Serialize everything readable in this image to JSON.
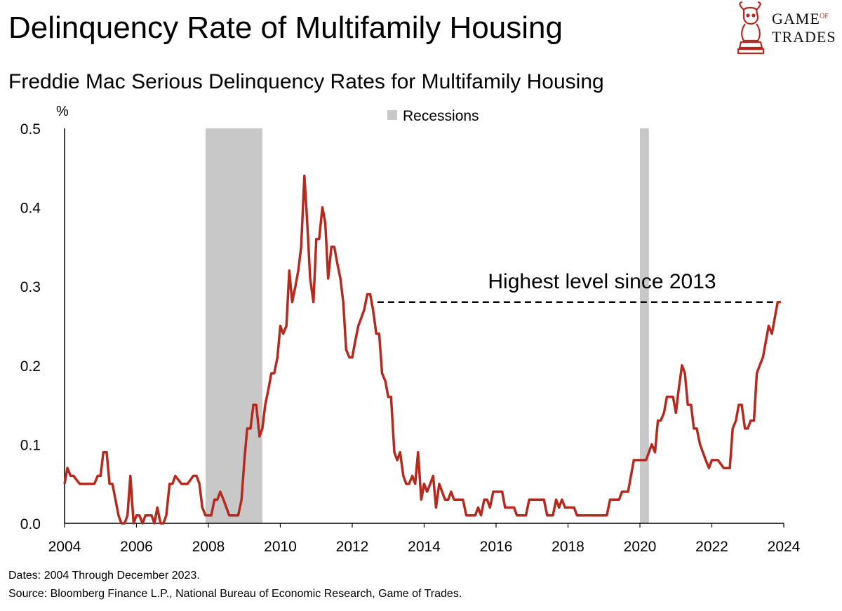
{
  "header": {
    "title": "Delinquency Rate of Multifamily Housing",
    "subtitle": "Freddie Mac Serious Delinquency Rates for Multifamily Housing",
    "logo_line1": "GAME",
    "logo_of": "OF",
    "logo_line2": "TRADES"
  },
  "footer": {
    "dates_note": "Dates: 2004 Through December 2023.",
    "source_note": "Source: Bloomberg Finance L.P., National Bureau of Economic Research, Game of Trades."
  },
  "colors": {
    "line": "#b5291f",
    "recession": "#c8c8c8",
    "axis": "#000000"
  },
  "chart_data": {
    "type": "line",
    "ylabel": "%",
    "xlim": [
      2004,
      2024
    ],
    "ylim": [
      0,
      0.5
    ],
    "x_ticks": [
      2004,
      2006,
      2008,
      2010,
      2012,
      2014,
      2016,
      2018,
      2020,
      2022,
      2024
    ],
    "y_ticks": [
      "0.0",
      "0.1",
      "0.2",
      "0.3",
      "0.4",
      "0.5"
    ],
    "legend": {
      "label": "Recessions",
      "placement": "top-center"
    },
    "recessions": [
      {
        "start": 2007.92,
        "end": 2009.5
      },
      {
        "start": 2020.0,
        "end": 2020.25
      }
    ],
    "annotation": {
      "text": "Highest level since 2013",
      "y": 0.28,
      "x_start": 2012.7,
      "x_end": 2023.9
    },
    "series": [
      {
        "x": [
          2004.0,
          2004.08,
          2004.17,
          2004.25,
          2004.42,
          2004.5,
          2004.83,
          2004.92,
          2005.0,
          2005.08,
          2005.17,
          2005.25,
          2005.33,
          2005.5,
          2005.58,
          2005.67,
          2005.75,
          2005.83,
          2005.92,
          2006.0,
          2006.08,
          2006.17,
          2006.25,
          2006.33,
          2006.42,
          2006.5,
          2006.58,
          2006.67,
          2006.75,
          2006.83,
          2006.92,
          2007.0,
          2007.08,
          2007.25,
          2007.33,
          2007.42,
          2007.58,
          2007.67,
          2007.75,
          2007.83,
          2007.92,
          2008.0,
          2008.08,
          2008.17,
          2008.25,
          2008.33,
          2008.42,
          2008.5,
          2008.58,
          2008.67,
          2008.75,
          2008.83,
          2008.92,
          2009.0,
          2009.08,
          2009.17,
          2009.25,
          2009.33,
          2009.42,
          2009.5,
          2009.58,
          2009.67,
          2009.75,
          2009.83,
          2009.92,
          2010.0,
          2010.08,
          2010.17,
          2010.25,
          2010.33,
          2010.42,
          2010.5,
          2010.58,
          2010.67,
          2010.75,
          2010.83,
          2010.92,
          2011.0,
          2011.08,
          2011.17,
          2011.25,
          2011.33,
          2011.42,
          2011.5,
          2011.58,
          2011.67,
          2011.75,
          2011.83,
          2011.92,
          2012.0,
          2012.08,
          2012.17,
          2012.25,
          2012.33,
          2012.42,
          2012.5,
          2012.58,
          2012.67,
          2012.75,
          2012.83,
          2012.92,
          2013.0,
          2013.08,
          2013.17,
          2013.25,
          2013.33,
          2013.42,
          2013.5,
          2013.58,
          2013.67,
          2013.75,
          2013.83,
          2013.92,
          2014.0,
          2014.08,
          2014.17,
          2014.25,
          2014.33,
          2014.42,
          2014.5,
          2014.58,
          2014.67,
          2014.75,
          2014.83,
          2014.92,
          2015.0,
          2015.08,
          2015.17,
          2015.33,
          2015.42,
          2015.5,
          2015.58,
          2015.67,
          2015.75,
          2015.83,
          2015.92,
          2016.0,
          2016.08,
          2016.17,
          2016.25,
          2016.33,
          2016.42,
          2016.5,
          2016.58,
          2016.67,
          2016.75,
          2016.83,
          2016.92,
          2017.0,
          2017.08,
          2017.17,
          2017.33,
          2017.42,
          2017.5,
          2017.58,
          2017.67,
          2017.75,
          2017.83,
          2017.92,
          2018.0,
          2018.08,
          2018.17,
          2018.25,
          2018.5,
          2018.67,
          2018.83,
          2019.0,
          2019.08,
          2019.17,
          2019.25,
          2019.33,
          2019.42,
          2019.5,
          2019.58,
          2019.67,
          2019.75,
          2019.83,
          2019.92,
          2020.0,
          2020.17,
          2020.25,
          2020.33,
          2020.42,
          2020.5,
          2020.58,
          2020.67,
          2020.75,
          2020.83,
          2020.92,
          2021.0,
          2021.08,
          2021.17,
          2021.25,
          2021.33,
          2021.42,
          2021.5,
          2021.58,
          2021.67,
          2021.75,
          2021.83,
          2021.92,
          2022.0,
          2022.08,
          2022.17,
          2022.33,
          2022.42,
          2022.5,
          2022.58,
          2022.67,
          2022.75,
          2022.83,
          2022.92,
          2023.0,
          2023.08,
          2023.17,
          2023.25,
          2023.33,
          2023.42,
          2023.5,
          2023.58,
          2023.67,
          2023.75,
          2023.83,
          2023.92
        ],
        "y": [
          0.05,
          0.07,
          0.06,
          0.06,
          0.05,
          0.05,
          0.05,
          0.06,
          0.06,
          0.09,
          0.09,
          0.05,
          0.05,
          0.01,
          0.0,
          0.0,
          0.01,
          0.06,
          0.0,
          0.01,
          0.01,
          0.0,
          0.01,
          0.01,
          0.01,
          0.0,
          0.02,
          0.0,
          0.0,
          0.01,
          0.05,
          0.05,
          0.06,
          0.05,
          0.05,
          0.05,
          0.06,
          0.06,
          0.05,
          0.02,
          0.01,
          0.01,
          0.01,
          0.03,
          0.03,
          0.04,
          0.03,
          0.02,
          0.01,
          0.01,
          0.01,
          0.01,
          0.03,
          0.08,
          0.12,
          0.12,
          0.15,
          0.15,
          0.11,
          0.12,
          0.15,
          0.17,
          0.19,
          0.19,
          0.21,
          0.25,
          0.24,
          0.25,
          0.32,
          0.28,
          0.3,
          0.32,
          0.35,
          0.44,
          0.38,
          0.31,
          0.28,
          0.36,
          0.36,
          0.4,
          0.38,
          0.31,
          0.35,
          0.35,
          0.33,
          0.31,
          0.28,
          0.22,
          0.21,
          0.21,
          0.23,
          0.25,
          0.26,
          0.27,
          0.29,
          0.29,
          0.27,
          0.24,
          0.24,
          0.19,
          0.18,
          0.16,
          0.16,
          0.09,
          0.08,
          0.09,
          0.06,
          0.05,
          0.05,
          0.06,
          0.05,
          0.09,
          0.03,
          0.05,
          0.04,
          0.05,
          0.06,
          0.02,
          0.05,
          0.04,
          0.03,
          0.03,
          0.04,
          0.03,
          0.03,
          0.03,
          0.03,
          0.01,
          0.01,
          0.01,
          0.02,
          0.01,
          0.03,
          0.03,
          0.02,
          0.04,
          0.04,
          0.04,
          0.04,
          0.02,
          0.02,
          0.02,
          0.02,
          0.01,
          0.01,
          0.01,
          0.01,
          0.03,
          0.03,
          0.03,
          0.03,
          0.03,
          0.01,
          0.01,
          0.01,
          0.03,
          0.02,
          0.03,
          0.02,
          0.02,
          0.02,
          0.02,
          0.01,
          0.01,
          0.01,
          0.01,
          0.01,
          0.01,
          0.03,
          0.03,
          0.03,
          0.03,
          0.04,
          0.04,
          0.04,
          0.06,
          0.08,
          0.08,
          0.08,
          0.08,
          0.09,
          0.1,
          0.09,
          0.13,
          0.13,
          0.14,
          0.16,
          0.16,
          0.16,
          0.14,
          0.17,
          0.2,
          0.19,
          0.15,
          0.15,
          0.12,
          0.12,
          0.1,
          0.09,
          0.08,
          0.07,
          0.08,
          0.08,
          0.08,
          0.07,
          0.07,
          0.07,
          0.12,
          0.13,
          0.15,
          0.15,
          0.12,
          0.12,
          0.13,
          0.13,
          0.19,
          0.2,
          0.21,
          0.23,
          0.25,
          0.24,
          0.26,
          0.28,
          0.28
        ]
      }
    ]
  }
}
